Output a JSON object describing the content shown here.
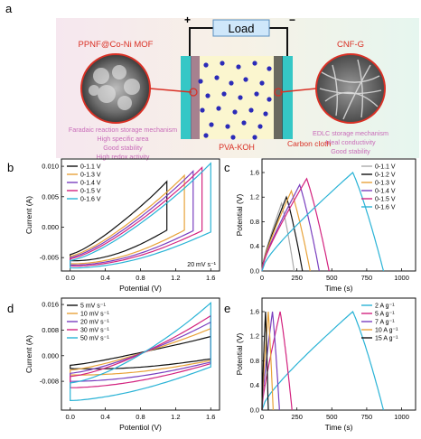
{
  "panel_a": {
    "letter": "a",
    "load": "Load",
    "plus": "+",
    "minus": "−",
    "left_title": "PPNF@Co-Ni MOF",
    "left_lines": [
      "Faradaic reaction storage mechanism",
      "High specific area",
      "Good stability",
      "High redox activity"
    ],
    "right_title": "CNF-G",
    "right_lines": [
      "EDLC storage mechanism",
      "Ideal conductivity",
      "Good stability"
    ],
    "electrolyte": "PVA-KOH",
    "collector": "Carbon cloth",
    "colors": {
      "bg_left": "#f6e7ef",
      "bg_right": "#e6f6ef",
      "mid": "#fbf6cf",
      "collector": "#35c7c6",
      "title": "#d93025",
      "text": "#c86bb8",
      "dot": "#2b2bb8"
    }
  },
  "chart_data": [
    {
      "panel": "b",
      "type": "line",
      "xlabel": "Potential (V)",
      "ylabel": "Current (A)",
      "xlim": [
        -0.1,
        1.7
      ],
      "ylim": [
        -0.0072,
        0.0112
      ],
      "xticks": [
        0.0,
        0.4,
        0.8,
        1.2,
        1.6
      ],
      "xtick_labels": [
        "0.0",
        "0.4",
        "0.8",
        "1.2",
        "1.6"
      ],
      "yticks": [
        -0.005,
        0.0,
        0.005,
        0.01
      ],
      "ytick_labels": [
        "-0.005",
        "0.000",
        "0.005",
        "0.010"
      ],
      "annotation": "20 mV s⁻¹",
      "legend": "top-left",
      "series": [
        {
          "name": "0-1.1 V",
          "color": "#111111",
          "vmax": 1.1,
          "top_end": 0.0075,
          "top_start": -0.0045,
          "bot_start": -0.0055,
          "bot_end": -0.0005
        },
        {
          "name": "0-1.3 V",
          "color": "#e8a33a",
          "vmax": 1.3,
          "top_end": 0.0085,
          "top_start": -0.0048,
          "bot_start": -0.006,
          "bot_end": -0.0005
        },
        {
          "name": "0-1.4 V",
          "color": "#7a3fbf",
          "vmax": 1.4,
          "top_end": 0.0092,
          "top_start": -0.005,
          "bot_start": -0.0062,
          "bot_end": -0.0006
        },
        {
          "name": "0-1.5 V",
          "color": "#d3237f",
          "vmax": 1.5,
          "top_end": 0.0098,
          "top_start": -0.0052,
          "bot_start": -0.0064,
          "bot_end": -0.0006
        },
        {
          "name": "0-1.6 V",
          "color": "#2ab3d6",
          "vmax": 1.6,
          "top_end": 0.0105,
          "top_start": -0.0055,
          "bot_start": -0.0067,
          "bot_end": -0.0008
        }
      ]
    },
    {
      "panel": "c",
      "type": "line",
      "xlabel": "Time (s)",
      "ylabel": "Potential (V)",
      "xlim": [
        0,
        1100
      ],
      "ylim": [
        0,
        1.82
      ],
      "xticks": [
        0,
        250,
        500,
        750,
        1000
      ],
      "xtick_labels": [
        "0",
        "250",
        "500",
        "750",
        "1000"
      ],
      "yticks": [
        0.0,
        0.4,
        0.8,
        1.2,
        1.6
      ],
      "ytick_labels": [
        "0.0",
        "0.4",
        "0.8",
        "1.2",
        "1.6"
      ],
      "legend": "top-right",
      "series": [
        {
          "name": "0-1.1 V",
          "color": "#aaaaaa",
          "vmax": 1.1,
          "t_charge": 140,
          "t_end": 230
        },
        {
          "name": "0-1.2 V",
          "color": "#111111",
          "vmax": 1.2,
          "t_charge": 175,
          "t_end": 290
        },
        {
          "name": "0-1.3 V",
          "color": "#e8a33a",
          "vmax": 1.3,
          "t_charge": 210,
          "t_end": 345
        },
        {
          "name": "0-1.4 V",
          "color": "#7a3fbf",
          "vmax": 1.4,
          "t_charge": 270,
          "t_end": 410
        },
        {
          "name": "0-1.5 V",
          "color": "#d3237f",
          "vmax": 1.5,
          "t_charge": 320,
          "t_end": 480
        },
        {
          "name": "0-1.6 V",
          "color": "#2ab3d6",
          "vmax": 1.6,
          "t_charge": 650,
          "t_end": 870
        }
      ]
    },
    {
      "panel": "d",
      "type": "line",
      "xlabel": "Potentiol (V)",
      "ylabel": "Current (A)",
      "xlim": [
        -0.1,
        1.7
      ],
      "ylim": [
        -0.017,
        0.018
      ],
      "xticks": [
        0.0,
        0.4,
        0.8,
        1.2,
        1.6
      ],
      "xtick_labels": [
        "0.0",
        "0.4",
        "0.8",
        "1.2",
        "1.6"
      ],
      "yticks": [
        -0.008,
        0.0,
        0.008,
        0.016
      ],
      "ytick_labels": [
        "-0.008",
        "0.000",
        "0.008",
        "0.016"
      ],
      "legend": "top-left",
      "series": [
        {
          "name": "5 mV s⁻¹",
          "color": "#111111",
          "top_end": 0.006,
          "top_start": -0.003,
          "bot_start": -0.004,
          "bot_end": -0.001
        },
        {
          "name": "10 mV s⁻¹",
          "color": "#e8a33a",
          "top_end": 0.0085,
          "top_start": -0.0045,
          "bot_start": -0.006,
          "bot_end": -0.0015
        },
        {
          "name": "20 mV s⁻¹",
          "color": "#7a3fbf",
          "top_end": 0.0105,
          "top_start": -0.0055,
          "bot_start": -0.008,
          "bot_end": -0.002
        },
        {
          "name": "30 mV s⁻¹",
          "color": "#d3237f",
          "top_end": 0.0125,
          "top_start": -0.0065,
          "bot_start": -0.01,
          "bot_end": -0.0025
        },
        {
          "name": "50 mV s⁻¹",
          "color": "#2ab3d6",
          "top_end": 0.0165,
          "top_start": -0.0085,
          "bot_start": -0.014,
          "bot_end": -0.0035
        }
      ]
    },
    {
      "panel": "e",
      "type": "line",
      "xlabel": "Time (s)",
      "ylabel": "Potential (V)",
      "xlim": [
        0,
        1100
      ],
      "ylim": [
        0,
        1.82
      ],
      "xticks": [
        0,
        250,
        500,
        750,
        1000
      ],
      "xtick_labels": [
        "0",
        "250",
        "500",
        "750",
        "1000"
      ],
      "yticks": [
        0.0,
        0.4,
        0.8,
        1.2,
        1.6
      ],
      "ytick_labels": [
        "0.0",
        "0.4",
        "0.8",
        "1.2",
        "1.6"
      ],
      "legend": "top-right",
      "series": [
        {
          "name": "2 A g⁻¹",
          "color": "#2ab3d6",
          "vmax": 1.6,
          "t_charge": 650,
          "t_end": 870
        },
        {
          "name": "5 A g⁻¹",
          "color": "#d3237f",
          "vmax": 1.6,
          "t_charge": 130,
          "t_end": 215
        },
        {
          "name": "7 A g⁻¹",
          "color": "#7a3fbf",
          "vmax": 1.6,
          "t_charge": 75,
          "t_end": 125
        },
        {
          "name": "10 A g⁻¹",
          "color": "#e8a33a",
          "vmax": 1.6,
          "t_charge": 45,
          "t_end": 80
        },
        {
          "name": "15 A g⁻¹",
          "color": "#111111",
          "vmax": 1.6,
          "t_charge": 25,
          "t_end": 45
        }
      ]
    }
  ]
}
